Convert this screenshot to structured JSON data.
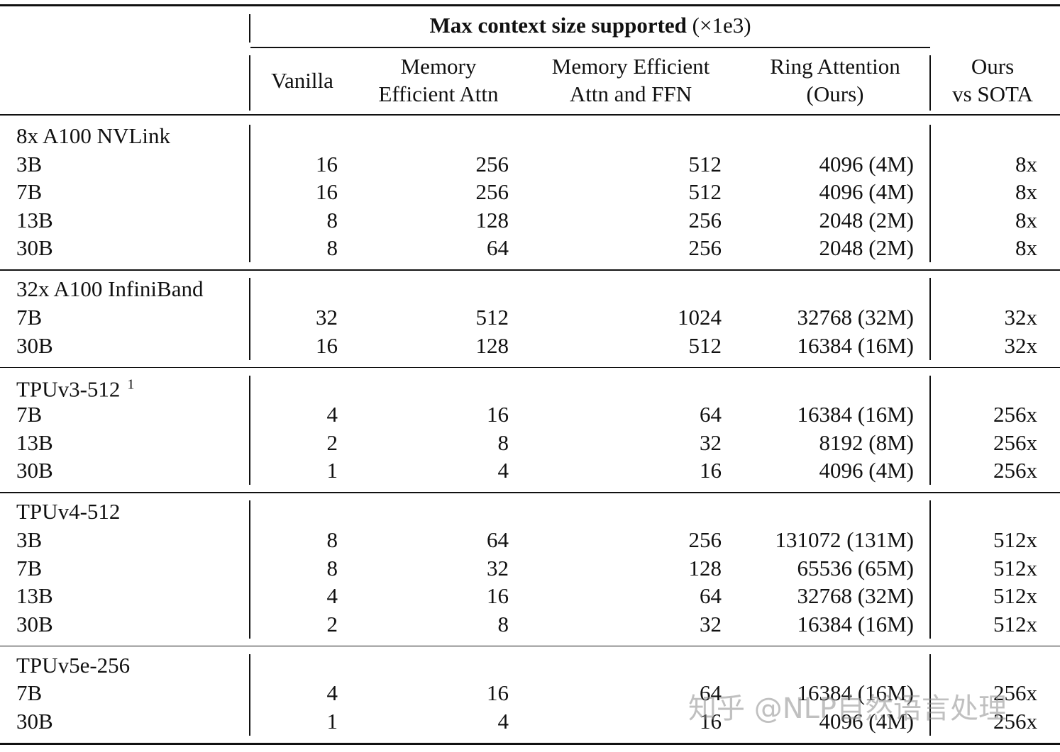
{
  "header": {
    "group_title": "Max context size supported",
    "group_unit": "(×1e3)",
    "columns": [
      [
        "Vanilla"
      ],
      [
        "Memory",
        "Efficient Attn"
      ],
      [
        "Memory Efficient",
        "Attn and FFN"
      ],
      [
        "Ring Attention",
        "(Ours)"
      ],
      [
        "Ours",
        "vs SOTA"
      ]
    ]
  },
  "sections": [
    {
      "title": "8x A100 NVLink",
      "rows": [
        [
          "3B",
          "16",
          "256",
          "512",
          "4096 (4M)",
          "8x"
        ],
        [
          "7B",
          "16",
          "256",
          "512",
          "4096 (4M)",
          "8x"
        ],
        [
          "13B",
          "8",
          "128",
          "256",
          "2048 (2M)",
          "8x"
        ],
        [
          "30B",
          "8",
          "64",
          "256",
          "2048 (2M)",
          "8x"
        ]
      ]
    },
    {
      "title": "32x A100 InfiniBand",
      "rows": [
        [
          "7B",
          "32",
          "512",
          "1024",
          "32768 (32M)",
          "32x"
        ],
        [
          "30B",
          "16",
          "128",
          "512",
          "16384 (16M)",
          "32x"
        ]
      ]
    },
    {
      "title": "TPUv3-512",
      "footnote": "1",
      "rows": [
        [
          "7B",
          "4",
          "16",
          "64",
          "16384 (16M)",
          "256x"
        ],
        [
          "13B",
          "2",
          "8",
          "32",
          "8192 (8M)",
          "256x"
        ],
        [
          "30B",
          "1",
          "4",
          "16",
          "4096 (4M)",
          "256x"
        ]
      ]
    },
    {
      "title": "TPUv4-512",
      "rows": [
        [
          "3B",
          "8",
          "64",
          "256",
          "131072 (131M)",
          "512x"
        ],
        [
          "7B",
          "8",
          "32",
          "128",
          "65536 (65M)",
          "512x"
        ],
        [
          "13B",
          "4",
          "16",
          "64",
          "32768 (32M)",
          "512x"
        ],
        [
          "30B",
          "2",
          "8",
          "32",
          "16384 (16M)",
          "512x"
        ]
      ]
    },
    {
      "title": "TPUv5e-256",
      "rows": [
        [
          "7B",
          "4",
          "16",
          "64",
          "16384 (16M)",
          "256x"
        ],
        [
          "30B",
          "1",
          "4",
          "16",
          "4096 (4M)",
          "256x"
        ]
      ]
    }
  ],
  "watermark": "知乎 @NLP自然语言处理"
}
